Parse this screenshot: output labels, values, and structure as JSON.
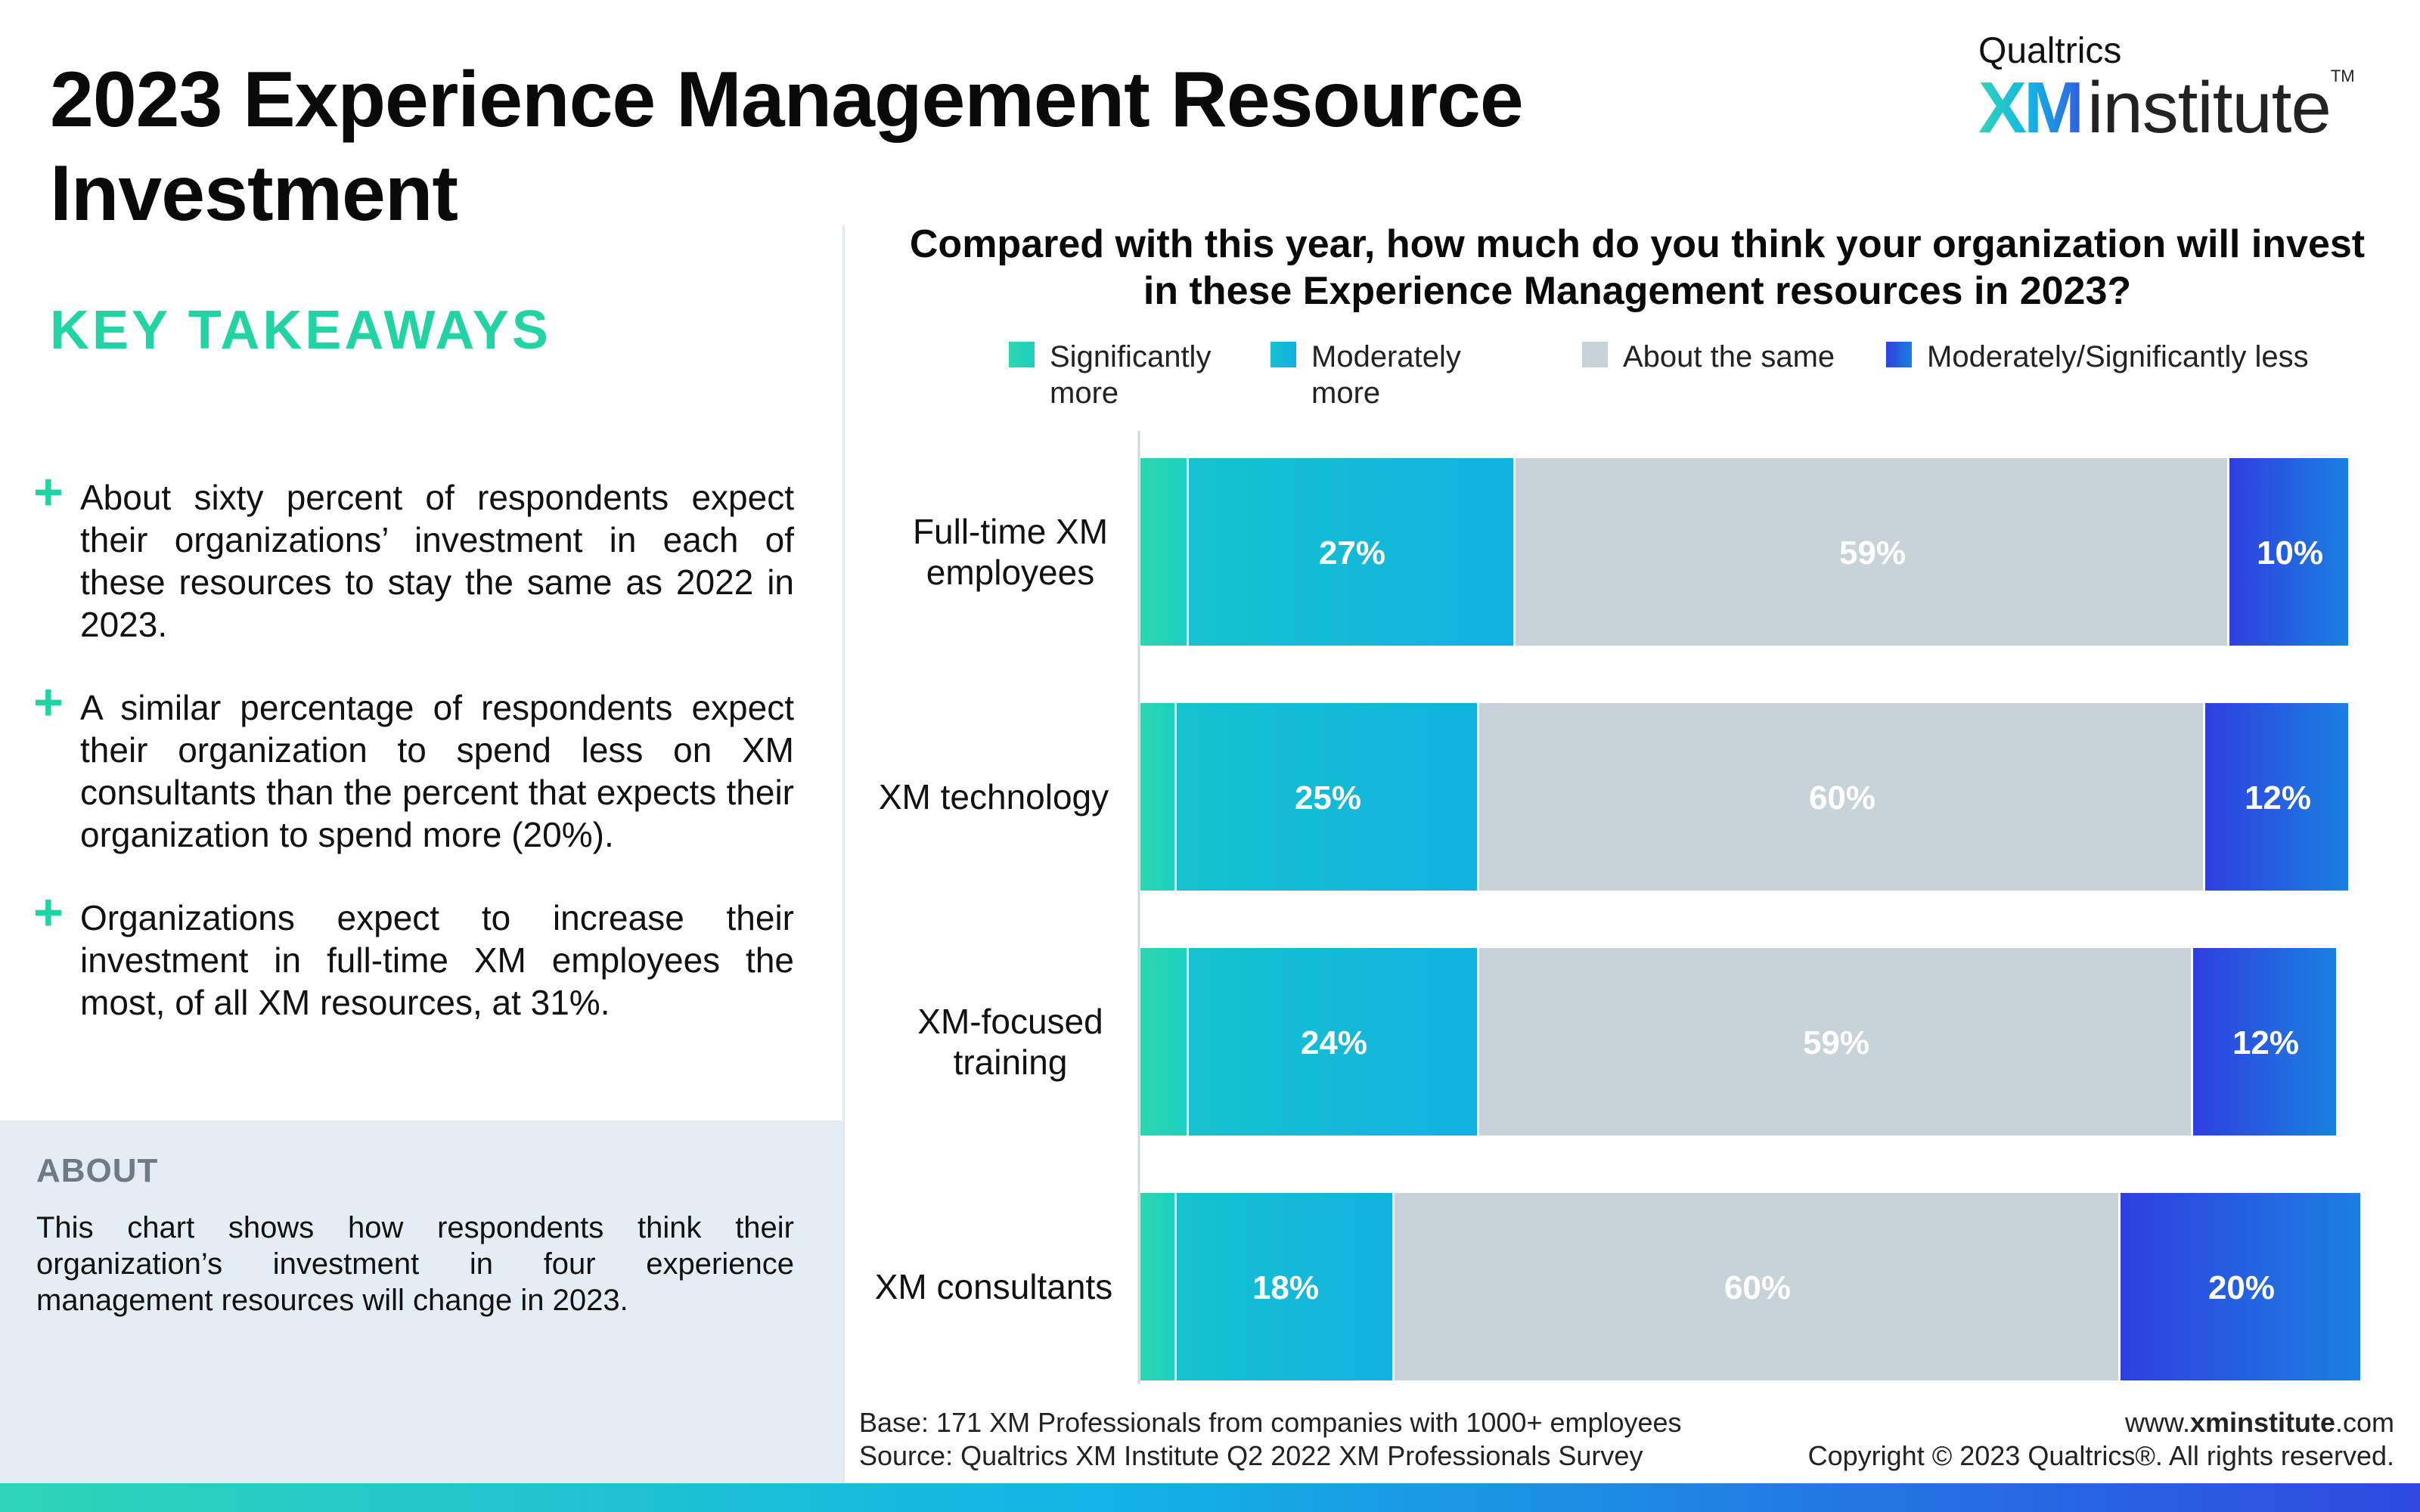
{
  "header": {
    "title": "2023 Experience Management Resource Investment",
    "logo_top": "Qualtrics",
    "logo_xm": "XM",
    "logo_institute": "institute",
    "logo_tm": "TM"
  },
  "takeaways": {
    "heading": "KEY TAKEAWAYS",
    "items": [
      "About sixty percent of respondents expect their organizations’ investment in each of these resources to stay the same as 2022 in 2023.",
      "A similar percentage of respondents expect their organization to spend less on XM consultants than the percent that expects their organization to spend more (20%).",
      "Organizations expect to increase their investment in full-time XM employees the most, of all XM resources, at 31%."
    ]
  },
  "about": {
    "heading": "ABOUT",
    "text": "This chart shows how respondents think their organization’s investment in four experience management resources will change in 2023."
  },
  "chart_data": {
    "type": "bar",
    "orientation": "horizontal",
    "stacked": true,
    "title": "Compared with this year, how much do you think your organization will invest in these Experience Management resources in 2023?",
    "categories": [
      "Full-time XM employees",
      "XM technology",
      "XM-focused training",
      "XM consultants"
    ],
    "series": [
      {
        "name": "Significantly more",
        "color": "#2fd6b0",
        "values": [
          4,
          3,
          4,
          3
        ],
        "labels": [
          "",
          "",
          "",
          ""
        ]
      },
      {
        "name": "Moderately more",
        "color": "#16c2cf",
        "values": [
          27,
          25,
          24,
          18
        ],
        "labels": [
          "27%",
          "25%",
          "24%",
          "18%"
        ]
      },
      {
        "name": "About the same",
        "color": "#c8d2d9",
        "values": [
          59,
          60,
          59,
          60
        ],
        "labels": [
          "59%",
          "60%",
          "59%",
          "60%"
        ]
      },
      {
        "name": "Moderately/Significantly less",
        "color": "#2f49e0",
        "values": [
          10,
          12,
          12,
          20
        ],
        "labels": [
          "10%",
          "12%",
          "12%",
          "20%"
        ]
      }
    ],
    "xlim": [
      0,
      100
    ],
    "grid": false,
    "legend": "top"
  },
  "footer": {
    "base": "Base: 171 XM Professionals from companies with 1000+ employees",
    "source": "Source: Qualtrics XM Institute Q2 2022 XM Professionals Survey",
    "url_prefix": "www.",
    "url_bold": "xminstitute",
    "url_suffix": ".com",
    "copyright": "Copyright © 2023 Qualtrics®. All rights reserved."
  }
}
